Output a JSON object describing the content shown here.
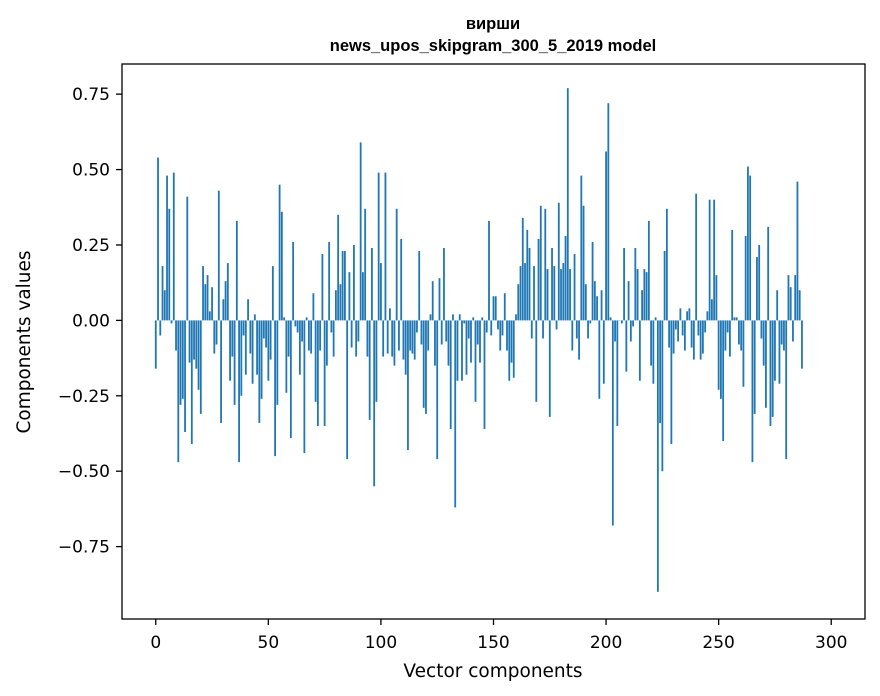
{
  "chart_data": {
    "type": "bar",
    "title": "вирши",
    "subtitle": "news_upos_skipgram_300_5_2019 model",
    "xlabel": "Vector components",
    "ylabel": "Components values",
    "xlim": [
      -15,
      315
    ],
    "ylim": [
      -0.99,
      0.85
    ],
    "xticks": [
      0,
      50,
      100,
      150,
      200,
      250,
      300
    ],
    "xtick_labels": [
      "0",
      "50",
      "100",
      "150",
      "200",
      "250",
      "300"
    ],
    "yticks": [
      -0.75,
      -0.5,
      -0.25,
      0.0,
      0.25,
      0.5,
      0.75
    ],
    "ytick_labels": [
      "−0.75",
      "−0.50",
      "−0.25",
      "0.00",
      "0.25",
      "0.50",
      "0.75"
    ],
    "color": "#1f77b4",
    "values": [
      -0.16,
      0.54,
      -0.05,
      0.18,
      0.1,
      0.48,
      0.37,
      -0.01,
      0.49,
      -0.1,
      -0.47,
      -0.28,
      -0.26,
      -0.37,
      0.41,
      -0.14,
      -0.41,
      -0.13,
      -0.16,
      -0.23,
      -0.31,
      0.18,
      0.12,
      0.15,
      0.03,
      0.11,
      -0.11,
      -0.08,
      0.43,
      -0.34,
      0.07,
      0.13,
      0.19,
      -0.2,
      -0.12,
      -0.28,
      0.33,
      -0.47,
      -0.25,
      -0.05,
      -0.18,
      0.07,
      -0.11,
      -0.21,
      0.02,
      -0.18,
      -0.34,
      -0.26,
      -0.06,
      -0.09,
      -0.2,
      -0.13,
      0.18,
      -0.45,
      -0.28,
      0.45,
      0.36,
      0.01,
      -0.24,
      -0.12,
      -0.39,
      0.26,
      -0.02,
      -0.04,
      -0.18,
      -0.07,
      -0.44,
      0.01,
      -0.1,
      -0.11,
      0.09,
      -0.27,
      -0.35,
      -0.1,
      0.22,
      -0.35,
      -0.15,
      0.26,
      -0.04,
      -0.12,
      0.1,
      0.35,
      0.12,
      0.23,
      0.23,
      -0.46,
      0.16,
      -0.09,
      0.25,
      -0.12,
      -0.07,
      0.59,
      0.16,
      0.37,
      -0.12,
      -0.33,
      0.24,
      -0.55,
      -0.27,
      0.49,
      0.19,
      -0.12,
      0.49,
      -0.11,
      0.04,
      -0.12,
      -0.15,
      0.37,
      -0.1,
      0.27,
      -0.13,
      -0.18,
      -0.43,
      -0.1,
      -0.11,
      -0.13,
      -0.04,
      0.23,
      -0.08,
      -0.29,
      -0.31,
      -0.1,
      0.02,
      0.13,
      -0.15,
      -0.46,
      0.14,
      -0.08,
      0.24,
      -0.07,
      -0.15,
      -0.36,
      0.02,
      -0.62,
      -0.2,
      0.02,
      -0.2,
      -0.01,
      -0.18,
      -0.06,
      -0.14,
      0.01,
      -0.27,
      -0.08,
      -0.14,
      0.01,
      -0.36,
      -0.04,
      0.33,
      -0.05,
      0.08,
      0.08,
      -0.03,
      -0.1,
      -0.05,
      0.09,
      -0.1,
      -0.2,
      -0.14,
      -0.19,
      0.02,
      0.12,
      0.18,
      0.34,
      0.19,
      0.3,
      0.24,
      -0.06,
      0.18,
      -0.27,
      0.27,
      0.38,
      -0.06,
      0.37,
      0.17,
      -0.32,
      0.24,
      0.18,
      -0.03,
      0.39,
      0.17,
      0.19,
      0.28,
      0.77,
      0.17,
      -0.1,
      0.22,
      -0.06,
      -0.13,
      0.48,
      0.38,
      0.12,
      -0.06,
      -0.01,
      0.26,
      0.13,
      0.08,
      -0.26,
      0.1,
      -0.21,
      0.56,
      0.72,
      0.01,
      -0.68,
      -0.07,
      -0.35,
      0.0,
      -0.01,
      0.24,
      -0.17,
      0.13,
      -0.07,
      -0.02,
      0.24,
      0.17,
      -0.2,
      0.1,
      0.17,
      0.16,
      0.33,
      -0.15,
      -0.21,
      0.01,
      -0.9,
      -0.34,
      -0.5,
      0.23,
      0.37,
      -0.09,
      -0.41,
      -0.11,
      -0.03,
      -0.07,
      0.04,
      -0.05,
      -0.1,
      0.03,
      0.04,
      -0.09,
      -0.13,
      0.42,
      -0.05,
      -0.13,
      -0.11,
      -0.04,
      0.03,
      0.4,
      0.07,
      0.4,
      0.15,
      -0.23,
      -0.26,
      -0.4,
      -0.1,
      -0.04,
      -0.12,
      0.3,
      0.01,
      0.01,
      -0.08,
      -0.1,
      -0.22,
      0.28,
      0.51,
      0.48,
      -0.47,
      -0.31,
      0.21,
      0.25,
      -0.06,
      -0.15,
      -0.29,
      0.31,
      -0.35,
      -0.32,
      -0.2,
      0.1,
      -0.21,
      -0.08,
      -0.1,
      -0.46,
      0.15,
      0.11,
      -0.07,
      0.15,
      0.46,
      0.1,
      -0.16
    ]
  }
}
